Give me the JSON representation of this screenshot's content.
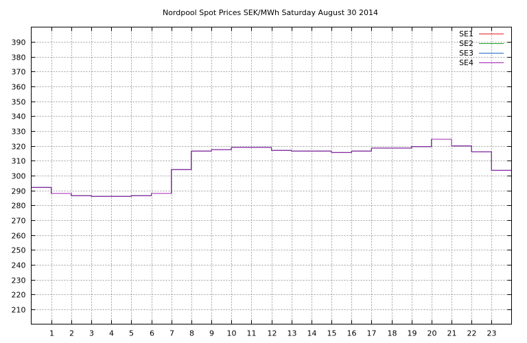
{
  "chart_data": {
    "type": "line",
    "step": true,
    "title": "Nordpool Spot Prices SEK/MWh Saturday August 30 2014",
    "xlabel": "",
    "ylabel": "",
    "xlim": [
      0,
      24
    ],
    "ylim": [
      200,
      400
    ],
    "x_ticks": [
      1,
      2,
      3,
      4,
      5,
      6,
      7,
      8,
      9,
      10,
      11,
      12,
      13,
      14,
      15,
      16,
      17,
      18,
      19,
      20,
      21,
      22,
      23
    ],
    "y_ticks": [
      210,
      220,
      230,
      240,
      250,
      260,
      270,
      280,
      290,
      300,
      310,
      320,
      330,
      340,
      350,
      360,
      370,
      380,
      390
    ],
    "grid": true,
    "legend_position": "top-right",
    "hours": [
      0,
      1,
      2,
      3,
      4,
      5,
      6,
      7,
      8,
      9,
      10,
      11,
      12,
      13,
      14,
      15,
      16,
      17,
      18,
      19,
      20,
      21,
      22,
      23
    ],
    "series": [
      {
        "name": "SE1",
        "color": "#e41a1c",
        "values": [
          292.0,
          288.0,
          286.5,
          286.0,
          286.0,
          286.5,
          288.0,
          304.0,
          316.5,
          317.5,
          319.0,
          319.0,
          317.0,
          316.5,
          316.5,
          315.5,
          316.5,
          318.5,
          318.5,
          319.5,
          324.5,
          320.0,
          316.0,
          303.5
        ]
      },
      {
        "name": "SE2",
        "color": "#1a9e1a",
        "values": [
          292.0,
          288.0,
          286.5,
          286.0,
          286.0,
          286.5,
          288.0,
          304.0,
          316.5,
          317.5,
          319.0,
          319.0,
          317.0,
          316.5,
          316.5,
          315.5,
          316.5,
          318.5,
          318.5,
          319.5,
          324.5,
          320.0,
          316.0,
          303.5
        ]
      },
      {
        "name": "SE3",
        "color": "#1a66cc",
        "values": [
          292.0,
          288.0,
          286.5,
          286.0,
          286.0,
          286.5,
          288.0,
          304.0,
          316.5,
          317.5,
          319.0,
          319.0,
          317.0,
          316.5,
          316.5,
          315.5,
          316.5,
          318.5,
          318.5,
          319.5,
          324.5,
          320.0,
          316.0,
          303.5
        ]
      },
      {
        "name": "SE4",
        "color": "#a020b0",
        "values": [
          292.0,
          288.0,
          286.5,
          286.0,
          286.0,
          286.5,
          288.0,
          304.0,
          316.5,
          317.5,
          319.0,
          319.0,
          317.0,
          316.5,
          316.5,
          315.5,
          316.5,
          318.5,
          318.5,
          319.5,
          324.5,
          320.0,
          316.0,
          303.5
        ]
      }
    ]
  }
}
